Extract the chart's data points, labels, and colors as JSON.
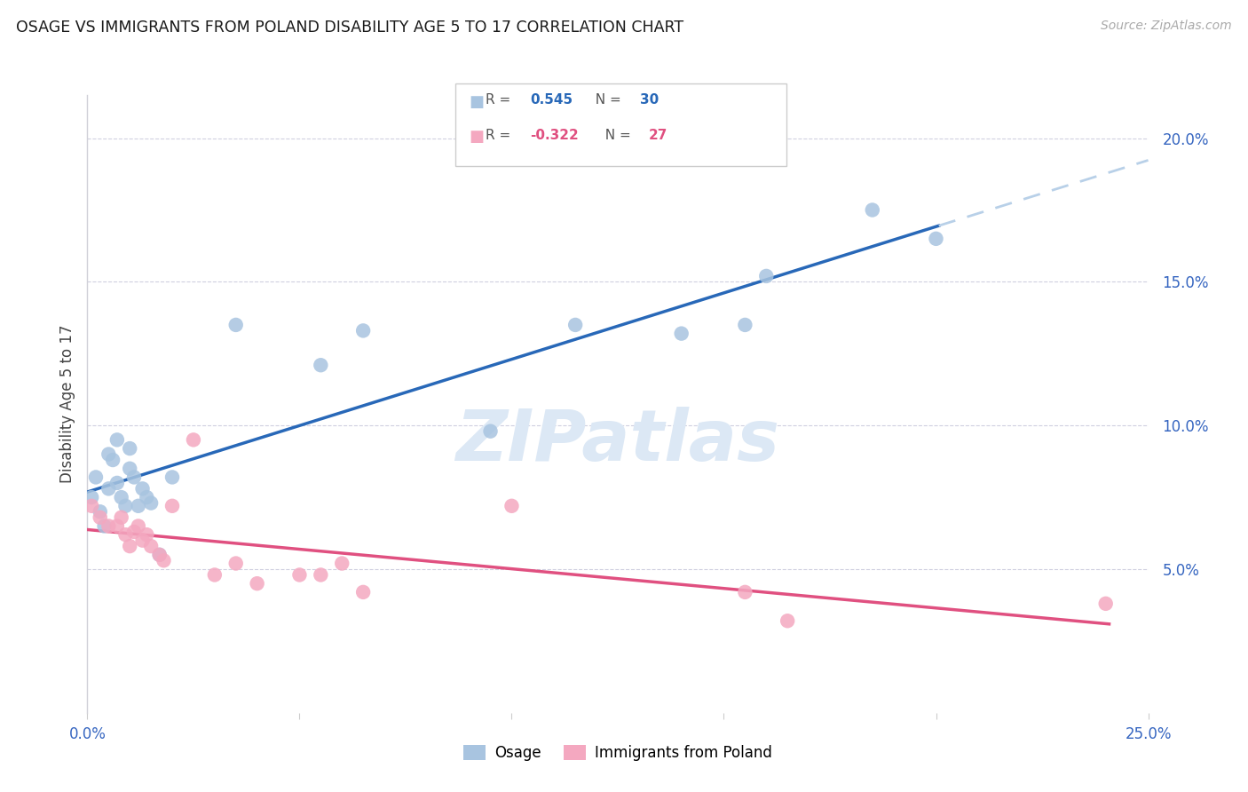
{
  "title": "OSAGE VS IMMIGRANTS FROM POLAND DISABILITY AGE 5 TO 17 CORRELATION CHART",
  "source": "Source: ZipAtlas.com",
  "ylabel": "Disability Age 5 to 17",
  "xlim": [
    0.0,
    0.25
  ],
  "ylim": [
    0.0,
    0.215
  ],
  "osage_color": "#a8c4e0",
  "poland_color": "#f4a8c0",
  "osage_line_color": "#2868b8",
  "poland_line_color": "#e05080",
  "trendline_ext_color": "#b8d0e8",
  "watermark": "ZIPatlas",
  "watermark_color": "#dce8f5",
  "osage_x": [
    0.001,
    0.002,
    0.003,
    0.004,
    0.005,
    0.005,
    0.006,
    0.007,
    0.007,
    0.008,
    0.009,
    0.01,
    0.01,
    0.011,
    0.012,
    0.013,
    0.014,
    0.015,
    0.017,
    0.02,
    0.035,
    0.055,
    0.065,
    0.095,
    0.115,
    0.14,
    0.155,
    0.16,
    0.185,
    0.2
  ],
  "osage_y": [
    0.075,
    0.082,
    0.07,
    0.065,
    0.078,
    0.09,
    0.088,
    0.08,
    0.095,
    0.075,
    0.072,
    0.085,
    0.092,
    0.082,
    0.072,
    0.078,
    0.075,
    0.073,
    0.055,
    0.082,
    0.135,
    0.121,
    0.133,
    0.098,
    0.135,
    0.132,
    0.135,
    0.152,
    0.175,
    0.165
  ],
  "poland_x": [
    0.001,
    0.003,
    0.005,
    0.007,
    0.008,
    0.009,
    0.01,
    0.011,
    0.012,
    0.013,
    0.014,
    0.015,
    0.017,
    0.018,
    0.02,
    0.025,
    0.03,
    0.035,
    0.04,
    0.05,
    0.055,
    0.06,
    0.065,
    0.1,
    0.155,
    0.165,
    0.24
  ],
  "poland_y": [
    0.072,
    0.068,
    0.065,
    0.065,
    0.068,
    0.062,
    0.058,
    0.063,
    0.065,
    0.06,
    0.062,
    0.058,
    0.055,
    0.053,
    0.072,
    0.095,
    0.048,
    0.052,
    0.045,
    0.048,
    0.048,
    0.052,
    0.042,
    0.072,
    0.042,
    0.032,
    0.038
  ]
}
